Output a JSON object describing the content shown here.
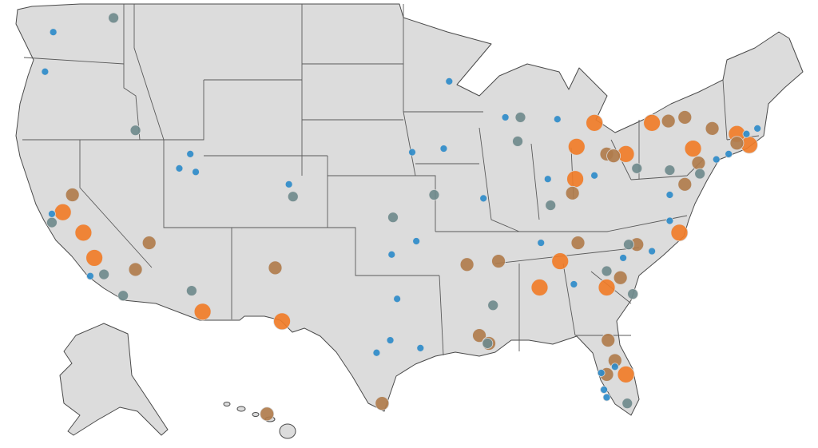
{
  "map": {
    "projection": "mercator",
    "levels": [
      {
        "color": "#2e8bc9"
      },
      {
        "color": "#6f8a8c"
      },
      {
        "color": "#b07c4c"
      },
      {
        "color": "#f07c28"
      }
    ],
    "markers": [
      [
        -122.2,
        47.6,
        1
      ],
      [
        -122.8,
        45.6,
        1
      ],
      [
        -93.3,
        45.1,
        1
      ],
      [
        -89.2,
        43.2,
        1
      ],
      [
        -85.4,
        43.1,
        1
      ],
      [
        -96.0,
        41.3,
        1
      ],
      [
        -93.7,
        41.5,
        1
      ],
      [
        -112.2,
        41.2,
        1
      ],
      [
        -113.0,
        40.4,
        1
      ],
      [
        -111.8,
        40.2,
        1
      ],
      [
        -105.0,
        39.5,
        1
      ],
      [
        -77.2,
        38.9,
        1
      ],
      [
        -95.7,
        36.2,
        1
      ],
      [
        -97.5,
        35.4,
        1
      ],
      [
        -86.6,
        36.1,
        1
      ],
      [
        -77.2,
        37.4,
        1
      ],
      [
        -78.5,
        35.6,
        1
      ],
      [
        -80.6,
        35.2,
        1
      ],
      [
        -84.2,
        33.6,
        1
      ],
      [
        -97.1,
        32.7,
        1
      ],
      [
        -97.6,
        30.1,
        1
      ],
      [
        -98.6,
        29.3,
        1
      ],
      [
        -95.4,
        29.6,
        1
      ],
      [
        -73.8,
        40.9,
        1
      ],
      [
        -72.9,
        41.2,
        1
      ],
      [
        -71.6,
        42.3,
        1
      ],
      [
        -70.8,
        42.6,
        1
      ],
      [
        -82.7,
        40.0,
        1
      ],
      [
        -82.2,
        28.0,
        1
      ],
      [
        -82.0,
        26.9,
        1
      ],
      [
        -81.8,
        26.4,
        1
      ],
      [
        -122.3,
        37.8,
        1
      ],
      [
        -119.5,
        34.1,
        1
      ],
      [
        -86.1,
        39.8,
        1
      ],
      [
        -90.8,
        38.7,
        1
      ],
      [
        -81.2,
        28.4,
        1
      ],
      [
        -117.8,
        48.3,
        2
      ],
      [
        -116.2,
        42.5,
        2
      ],
      [
        -104.7,
        38.8,
        2
      ],
      [
        -94.4,
        38.9,
        2
      ],
      [
        -97.4,
        37.6,
        2
      ],
      [
        -88.3,
        41.9,
        2
      ],
      [
        -88.1,
        43.2,
        2
      ],
      [
        -85.9,
        38.3,
        2
      ],
      [
        -79.6,
        40.4,
        2
      ],
      [
        -77.2,
        40.3,
        2
      ],
      [
        -75.0,
        40.1,
        2
      ],
      [
        -80.2,
        36.0,
        2
      ],
      [
        -81.8,
        34.4,
        2
      ],
      [
        -79.9,
        33.0,
        2
      ],
      [
        -112.1,
        33.2,
        2
      ],
      [
        -117.1,
        32.9,
        2
      ],
      [
        -118.5,
        34.2,
        2
      ],
      [
        -90.1,
        32.3,
        2
      ],
      [
        -90.5,
        29.9,
        2
      ],
      [
        -80.3,
        26.0,
        2
      ],
      [
        -122.3,
        37.3,
        2
      ],
      [
        -120.8,
        38.9,
        3
      ],
      [
        -115.2,
        36.1,
        3
      ],
      [
        -116.2,
        34.5,
        3
      ],
      [
        -106.0,
        34.6,
        3
      ],
      [
        -92.0,
        34.8,
        3
      ],
      [
        -89.7,
        35.0,
        3
      ],
      [
        -83.9,
        36.1,
        3
      ],
      [
        -84.3,
        39.0,
        3
      ],
      [
        -79.6,
        36.0,
        3
      ],
      [
        -80.8,
        34.0,
        3
      ],
      [
        -76.1,
        39.5,
        3
      ],
      [
        -75.1,
        40.7,
        3
      ],
      [
        -76.1,
        43.2,
        3
      ],
      [
        -77.3,
        43.0,
        3
      ],
      [
        -74.1,
        42.6,
        3
      ],
      [
        -72.3,
        41.8,
        3
      ],
      [
        -81.8,
        41.2,
        3
      ],
      [
        -81.3,
        41.1,
        3
      ],
      [
        -91.1,
        30.4,
        3
      ],
      [
        -90.4,
        29.9,
        3
      ],
      [
        -81.7,
        30.1,
        3
      ],
      [
        -81.2,
        28.8,
        3
      ],
      [
        -81.8,
        27.9,
        3
      ],
      [
        -106.6,
        25.3,
        3
      ],
      [
        -98.2,
        26.0,
        3
      ],
      [
        -121.5,
        37.9,
        4
      ],
      [
        -120.0,
        36.7,
        4
      ],
      [
        -119.2,
        35.2,
        4
      ],
      [
        -111.3,
        31.9,
        4
      ],
      [
        -105.5,
        31.3,
        4
      ],
      [
        -82.7,
        42.9,
        4
      ],
      [
        -84.0,
        41.6,
        4
      ],
      [
        -78.5,
        42.9,
        4
      ],
      [
        -80.4,
        41.2,
        4
      ],
      [
        -75.5,
        41.5,
        4
      ],
      [
        -84.1,
        39.8,
        4
      ],
      [
        -85.2,
        35.0,
        4
      ],
      [
        -86.7,
        33.4,
        4
      ],
      [
        -81.8,
        33.4,
        4
      ],
      [
        -76.5,
        36.7,
        4
      ],
      [
        -72.3,
        42.3,
        4
      ],
      [
        -71.4,
        41.7,
        4
      ],
      [
        -80.4,
        27.9,
        4
      ]
    ]
  }
}
